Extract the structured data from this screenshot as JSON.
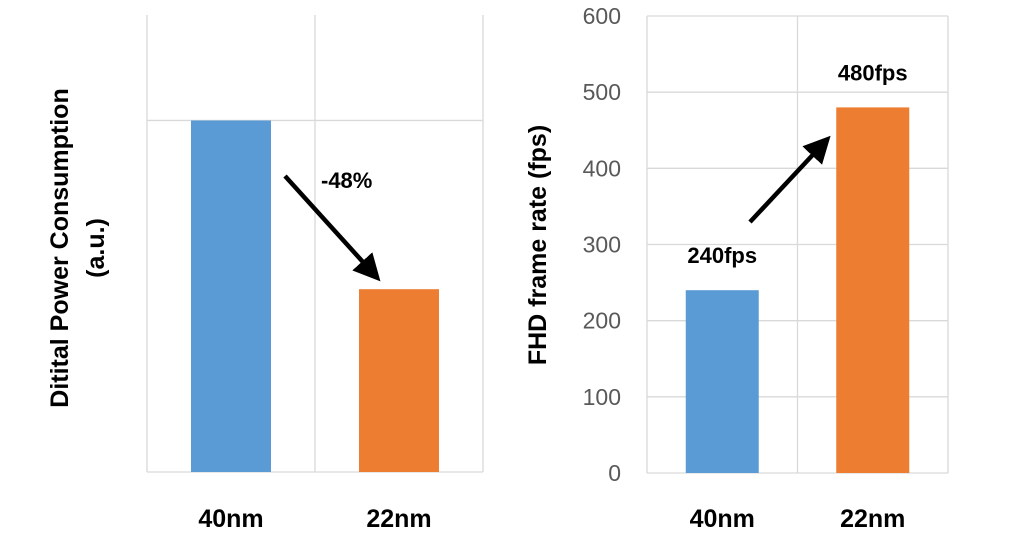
{
  "chart_data": [
    {
      "type": "bar",
      "categories": [
        "40nm",
        "22nm"
      ],
      "values": [
        1.0,
        0.52
      ],
      "ylim": [
        0,
        1.3
      ],
      "ylabel": "Ditital Power Consumption",
      "ylabel_unit": "(a.u.)",
      "annotation": "-48%",
      "colors": [
        "#5b9bd5",
        "#ed7d31"
      ],
      "grid": true
    },
    {
      "type": "bar",
      "categories": [
        "40nm",
        "22nm"
      ],
      "values": [
        240,
        480
      ],
      "ylim": [
        0,
        600
      ],
      "yticks": [
        "0",
        "100",
        "200",
        "300",
        "400",
        "500",
        "600"
      ],
      "ylabel": "FHD frame rate (fps)",
      "data_labels": [
        "240fps",
        "480fps"
      ],
      "colors": [
        "#5b9bd5",
        "#ed7d31"
      ],
      "grid": true
    }
  ]
}
